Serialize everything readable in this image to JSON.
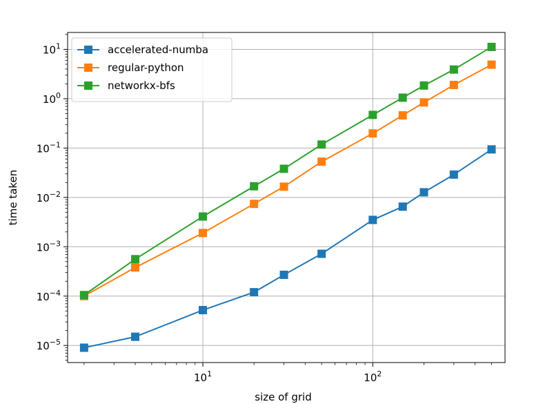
{
  "chart_data": {
    "type": "line",
    "title": "",
    "xlabel": "size of grid",
    "ylabel": "time taken",
    "xscale": "log",
    "yscale": "log",
    "xlim": [
      1.6,
      600
    ],
    "ylim": [
      4.5e-06,
      22
    ],
    "x": [
      2,
      4,
      10,
      20,
      30,
      50,
      100,
      150,
      200,
      300,
      500
    ],
    "x_ticks": [
      {
        "base": "10",
        "exp": "1",
        "value": 10
      },
      {
        "base": "10",
        "exp": "2",
        "value": 100
      }
    ],
    "y_ticks": [
      {
        "base": "10",
        "exp": "−5",
        "value": 1e-05
      },
      {
        "base": "10",
        "exp": "−4",
        "value": 0.0001
      },
      {
        "base": "10",
        "exp": "−3",
        "value": 0.001
      },
      {
        "base": "10",
        "exp": "−2",
        "value": 0.01
      },
      {
        "base": "10",
        "exp": "−1",
        "value": 0.1
      },
      {
        "base": "10",
        "exp": "0",
        "value": 1
      },
      {
        "base": "10",
        "exp": "1",
        "value": 10
      }
    ],
    "grid": true,
    "legend_position": "top-left",
    "series": [
      {
        "name": "accelerated-numba",
        "color": "#1f77b4",
        "marker": "square",
        "values": [
          9e-06,
          1.5e-05,
          5.2e-05,
          0.00012,
          0.00027,
          0.00072,
          0.0035,
          0.0065,
          0.0127,
          0.029,
          0.094
        ]
      },
      {
        "name": "regular-python",
        "color": "#ff7f0e",
        "marker": "square",
        "values": [
          0.0001,
          0.00038,
          0.0019,
          0.0074,
          0.0165,
          0.053,
          0.198,
          0.46,
          0.84,
          1.9,
          4.9
        ]
      },
      {
        "name": "networkx-bfs",
        "color": "#2ca02c",
        "marker": "square",
        "values": [
          0.000105,
          0.00056,
          0.0041,
          0.0168,
          0.038,
          0.118,
          0.47,
          1.05,
          1.85,
          3.9,
          11.2
        ]
      }
    ]
  }
}
